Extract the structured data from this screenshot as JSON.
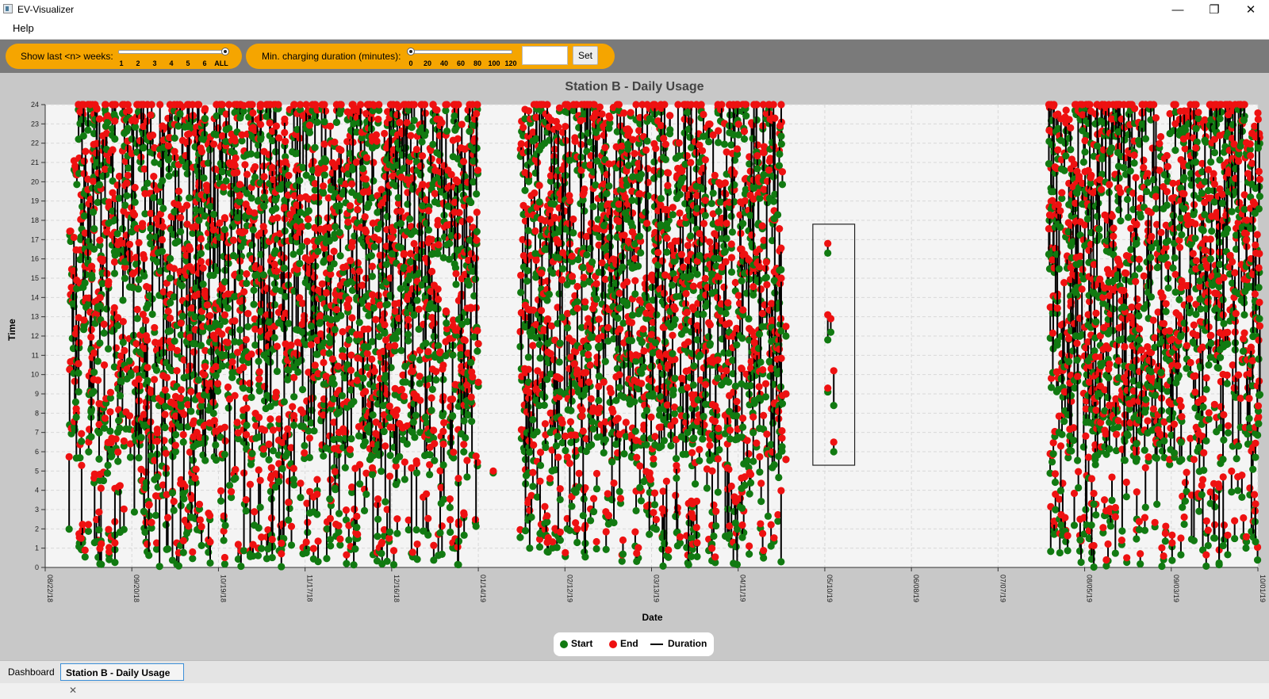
{
  "window": {
    "title": "EV-Visualizer",
    "minimize_glyph": "—",
    "maximize_glyph": "❐",
    "close_glyph": "✕"
  },
  "menu": {
    "items": [
      "Help"
    ]
  },
  "toolbar": {
    "weeks": {
      "label": "Show last <n> weeks:",
      "ticks": [
        "1",
        "2",
        "3",
        "4",
        "5",
        "6",
        "ALL"
      ],
      "selected": "ALL"
    },
    "duration": {
      "label": "Min. charging duration (minutes):",
      "ticks": [
        "0",
        "20",
        "40",
        "60",
        "80",
        "100",
        "120"
      ],
      "selected": 0,
      "input_value": "",
      "set_label": "Set"
    }
  },
  "chart_data": {
    "type": "scatter",
    "title": "Station B - Daily Usage",
    "xlabel": "Date",
    "ylabel": "Time",
    "x_ticks": [
      "08/22/18",
      "09/20/18",
      "10/19/18",
      "11/17/18",
      "12/16/18",
      "01/14/19",
      "02/12/19",
      "03/13/19",
      "04/11/19",
      "05/10/19",
      "06/08/19",
      "07/07/19",
      "08/05/19",
      "09/03/19",
      "10/01/19"
    ],
    "y_ticks": [
      "0",
      "1",
      "2",
      "3",
      "4",
      "5",
      "6",
      "7",
      "8",
      "9",
      "10",
      "11",
      "12",
      "13",
      "14",
      "15",
      "16",
      "17",
      "18",
      "19",
      "20",
      "21",
      "22",
      "23",
      "24"
    ],
    "ylim": [
      0,
      24
    ],
    "grid": true,
    "date_range_days": 406,
    "data_periods_days": [
      [
        8,
        144
      ],
      [
        159,
        246
      ],
      [
        336,
        406
      ]
    ],
    "zoom_box": {
      "x_days": [
        257,
        271
      ],
      "y_hours": [
        5.3,
        17.8
      ]
    },
    "highlighted_sessions": [
      {
        "day": 262,
        "start": 16.3,
        "end": 16.8
      },
      {
        "day": 262,
        "start": 11.8,
        "end": 13.1
      },
      {
        "day": 263,
        "start": 12.2,
        "end": 12.9
      },
      {
        "day": 262,
        "start": 9.1,
        "end": 9.3
      },
      {
        "day": 264,
        "start": 8.4,
        "end": 10.2
      },
      {
        "day": 264,
        "start": 6.0,
        "end": 6.5
      }
    ],
    "series": [
      {
        "name": "Start",
        "color": "#117a11"
      },
      {
        "name": "End",
        "color": "#ee1111"
      },
      {
        "name": "Duration",
        "color": "#000000"
      }
    ],
    "legend_position": "bottom-center"
  },
  "tabs": [
    {
      "label": "Dashboard",
      "active": false
    },
    {
      "label": "Station B - Daily Usage",
      "active": true,
      "close_glyph": "✕"
    }
  ]
}
